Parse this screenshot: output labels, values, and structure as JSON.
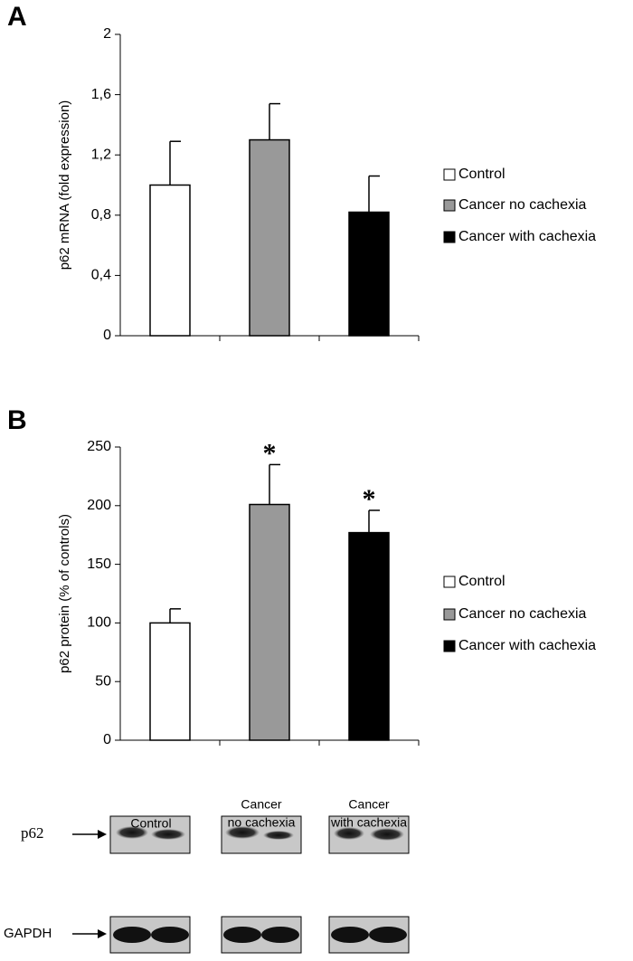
{
  "chart_data": [
    {
      "type": "bar",
      "panel": "A",
      "y_label": "p62 mRNA (fold expression)",
      "categories": [
        "Control",
        "Cancer no cachexia",
        "Cancer with cachexia"
      ],
      "values": [
        1.0,
        1.3,
        0.82
      ],
      "errors": [
        0.29,
        0.24,
        0.24
      ],
      "colors": [
        "#ffffff",
        "#999999",
        "#000000"
      ],
      "ylim": [
        0,
        2
      ],
      "yticks": [
        0,
        {
          "value": 0.4,
          "label": "0,4"
        },
        {
          "value": 0.8,
          "label": "0,8"
        },
        {
          "value": 1.2,
          "label": "1,2"
        },
        {
          "value": 1.6,
          "label": "1,6"
        },
        2
      ],
      "annotations": [
        null,
        null,
        null
      ],
      "legend": "right"
    },
    {
      "type": "bar",
      "panel": "B",
      "y_label": "p62 protein  (% of controls)",
      "categories": [
        "Control",
        "Cancer no cachexia",
        "Cancer with cachexia"
      ],
      "values": [
        100,
        201,
        177
      ],
      "errors": [
        12,
        34,
        19
      ],
      "colors": [
        "#ffffff",
        "#999999",
        "#000000"
      ],
      "ylim": [
        0,
        250
      ],
      "yticks": [
        0,
        50,
        100,
        150,
        200,
        250
      ],
      "annotations": [
        null,
        "*",
        "*"
      ],
      "legend": "right"
    }
  ],
  "blot": {
    "lanes": [
      [
        "Control"
      ],
      [
        "Cancer",
        "no cachexia"
      ],
      [
        "Cancer",
        "with cachexia"
      ]
    ],
    "rows": [
      "p62",
      "GAPDH"
    ]
  }
}
